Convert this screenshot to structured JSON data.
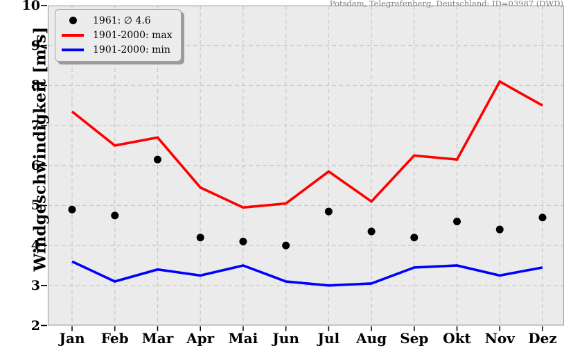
{
  "header": {
    "station_title": "Potsdam, Telegrafenberg, Deutschland: ID=03987 (DWD)"
  },
  "colors": {
    "plot_background": "#ebebeb",
    "gridline": "#c8c8c8",
    "spine": "#a6a6a6",
    "tick": "#000000",
    "max_line": "#ff0000",
    "min_line": "#0000ff",
    "dot": "#000000",
    "title_text": "#7f7f7f"
  },
  "legend": {
    "items": [
      {
        "label": "1961: ∅ 4.6",
        "swatch": "dot",
        "color": "#000000"
      },
      {
        "label": "1901-2000: max",
        "swatch": "line",
        "color": "#ff0000"
      },
      {
        "label": "1901-2000: min",
        "swatch": "line",
        "color": "#0000ff"
      }
    ]
  },
  "chart_data": {
    "type": "line",
    "title": "Potsdam, Telegrafenberg, Deutschland: ID=03987 (DWD)",
    "xlabel": "",
    "ylabel": "Windgeschwindigkeit [m/s]",
    "categories": [
      "Jan",
      "Feb",
      "Mar",
      "Apr",
      "Mai",
      "Jun",
      "Jul",
      "Aug",
      "Sep",
      "Okt",
      "Nov",
      "Dez"
    ],
    "ylim": [
      2,
      10
    ],
    "yticks": [
      2,
      3,
      4,
      5,
      6,
      7,
      8,
      9,
      10
    ],
    "grid": true,
    "grid_style": "dashed",
    "legend_position": "upper-left",
    "series": [
      {
        "name": "1961: ∅ 4.6",
        "type": "scatter",
        "color": "#000000",
        "values": [
          4.9,
          4.75,
          6.15,
          4.2,
          4.1,
          4.0,
          4.85,
          4.35,
          4.2,
          4.6,
          4.4,
          4.7
        ],
        "annotation_mean": 4.6
      },
      {
        "name": "1901-2000: max",
        "type": "line",
        "color": "#ff0000",
        "values": [
          7.35,
          6.5,
          6.7,
          5.45,
          4.95,
          5.05,
          5.85,
          5.1,
          6.25,
          6.15,
          8.1,
          7.5
        ]
      },
      {
        "name": "1901-2000: min",
        "type": "line",
        "color": "#0000ff",
        "values": [
          3.6,
          3.1,
          3.4,
          3.25,
          3.5,
          3.1,
          3.0,
          3.05,
          3.45,
          3.5,
          3.25,
          3.45
        ]
      }
    ]
  }
}
